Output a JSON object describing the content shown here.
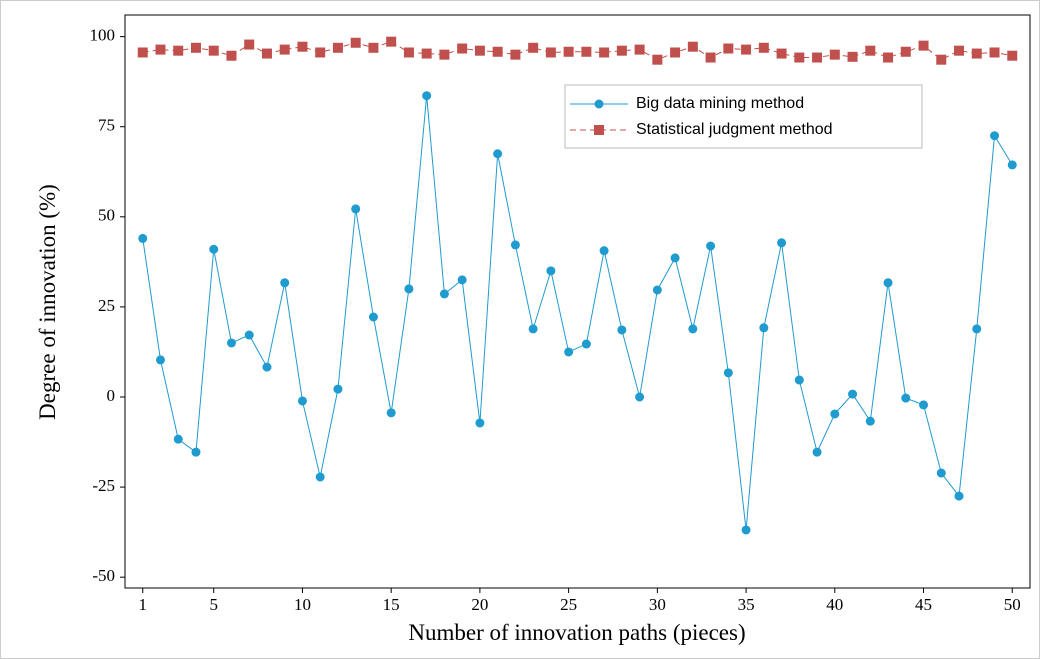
{
  "chart_data": {
    "type": "line",
    "xlabel": "Number of innovation paths (pieces)",
    "ylabel": "Degree of innovation (%)",
    "x": [
      1,
      2,
      3,
      4,
      5,
      6,
      7,
      8,
      9,
      10,
      11,
      12,
      13,
      14,
      15,
      16,
      17,
      18,
      19,
      20,
      21,
      22,
      23,
      24,
      25,
      26,
      27,
      28,
      29,
      30,
      31,
      32,
      33,
      34,
      35,
      36,
      37,
      38,
      39,
      40,
      41,
      42,
      43,
      44,
      45,
      46,
      47,
      48,
      49,
      50
    ],
    "series": [
      {
        "name": "Big data mining method",
        "color": "#1f9bcf",
        "marker": "circle",
        "dashed": false,
        "values": [
          44,
          10.3,
          -11.7,
          -15.3,
          41,
          15,
          17.2,
          8.3,
          31.7,
          -1.1,
          -22.2,
          2.2,
          52.2,
          22.2,
          -4.4,
          30,
          83.6,
          28.6,
          32.5,
          -7.2,
          67.5,
          42.2,
          18.9,
          35,
          12.5,
          14.7,
          40.6,
          18.6,
          0,
          29.7,
          38.6,
          18.9,
          41.9,
          6.7,
          -36.9,
          19.2,
          42.8,
          4.7,
          -15.3,
          -4.7,
          0.8,
          -6.7,
          31.7,
          -0.3,
          -2.2,
          -21.1,
          -27.5,
          18.9,
          72.5,
          64.4
        ]
      },
      {
        "name": "Statistical judgment method",
        "color": "#c0504d",
        "marker": "square",
        "dashed": true,
        "values": [
          95.6,
          96.4,
          96.1,
          96.9,
          96.1,
          94.7,
          97.8,
          95.3,
          96.4,
          97.2,
          95.6,
          96.9,
          98.3,
          96.9,
          98.6,
          95.6,
          95.3,
          95,
          96.7,
          96.1,
          95.8,
          95,
          96.9,
          95.6,
          95.8,
          95.8,
          95.6,
          96.1,
          96.4,
          93.6,
          95.6,
          97.2,
          94.2,
          96.7,
          96.4,
          96.9,
          95.3,
          94.2,
          94.2,
          95,
          94.4,
          96.1,
          94.2,
          95.8,
          97.5,
          93.6,
          96.1,
          95.3,
          95.6,
          94.7
        ]
      }
    ],
    "xlim": [
      0,
      51
    ],
    "xticks": [
      1,
      5,
      10,
      15,
      20,
      25,
      30,
      35,
      40,
      45,
      50
    ],
    "ylim": [
      -53,
      106
    ],
    "yticks": [
      -50,
      -25,
      0,
      25,
      50,
      75,
      100
    ]
  }
}
